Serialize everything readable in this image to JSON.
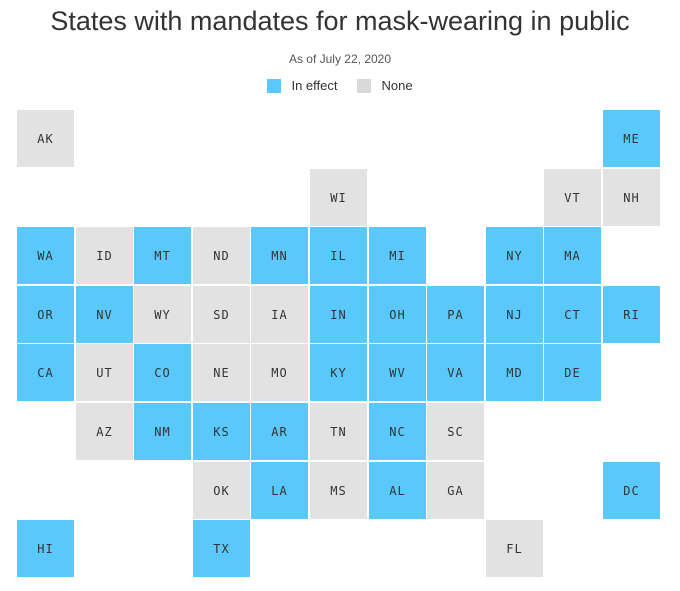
{
  "title": "States with mandates for mask-wearing in public",
  "subtitle": "As of July 22, 2020",
  "legend": [
    {
      "label": "In effect",
      "color": "#5bc8fb"
    },
    {
      "label": "None",
      "color": "#d9d9d9"
    }
  ],
  "colors": {
    "in_effect": "#5bc8fb",
    "none": "#e2e2e2"
  },
  "states": [
    {
      "abbr": "AK",
      "row": 0,
      "col": 0,
      "mandate": false
    },
    {
      "abbr": "ME",
      "row": 0,
      "col": 10,
      "mandate": true
    },
    {
      "abbr": "WI",
      "row": 1,
      "col": 5,
      "mandate": false
    },
    {
      "abbr": "VT",
      "row": 1,
      "col": 9,
      "mandate": false
    },
    {
      "abbr": "NH",
      "row": 1,
      "col": 10,
      "mandate": false
    },
    {
      "abbr": "WA",
      "row": 2,
      "col": 0,
      "mandate": true
    },
    {
      "abbr": "ID",
      "row": 2,
      "col": 1,
      "mandate": false
    },
    {
      "abbr": "MT",
      "row": 2,
      "col": 2,
      "mandate": true
    },
    {
      "abbr": "ND",
      "row": 2,
      "col": 3,
      "mandate": false
    },
    {
      "abbr": "MN",
      "row": 2,
      "col": 4,
      "mandate": true
    },
    {
      "abbr": "IL",
      "row": 2,
      "col": 5,
      "mandate": true
    },
    {
      "abbr": "MI",
      "row": 2,
      "col": 6,
      "mandate": true
    },
    {
      "abbr": "NY",
      "row": 2,
      "col": 8,
      "mandate": true
    },
    {
      "abbr": "MA",
      "row": 2,
      "col": 9,
      "mandate": true
    },
    {
      "abbr": "OR",
      "row": 3,
      "col": 0,
      "mandate": true
    },
    {
      "abbr": "NV",
      "row": 3,
      "col": 1,
      "mandate": true
    },
    {
      "abbr": "WY",
      "row": 3,
      "col": 2,
      "mandate": false
    },
    {
      "abbr": "SD",
      "row": 3,
      "col": 3,
      "mandate": false
    },
    {
      "abbr": "IA",
      "row": 3,
      "col": 4,
      "mandate": false
    },
    {
      "abbr": "IN",
      "row": 3,
      "col": 5,
      "mandate": true
    },
    {
      "abbr": "OH",
      "row": 3,
      "col": 6,
      "mandate": true
    },
    {
      "abbr": "PA",
      "row": 3,
      "col": 7,
      "mandate": true
    },
    {
      "abbr": "NJ",
      "row": 3,
      "col": 8,
      "mandate": true
    },
    {
      "abbr": "CT",
      "row": 3,
      "col": 9,
      "mandate": true
    },
    {
      "abbr": "RI",
      "row": 3,
      "col": 10,
      "mandate": true
    },
    {
      "abbr": "CA",
      "row": 4,
      "col": 0,
      "mandate": true
    },
    {
      "abbr": "UT",
      "row": 4,
      "col": 1,
      "mandate": false
    },
    {
      "abbr": "CO",
      "row": 4,
      "col": 2,
      "mandate": true
    },
    {
      "abbr": "NE",
      "row": 4,
      "col": 3,
      "mandate": false
    },
    {
      "abbr": "MO",
      "row": 4,
      "col": 4,
      "mandate": false
    },
    {
      "abbr": "KY",
      "row": 4,
      "col": 5,
      "mandate": true
    },
    {
      "abbr": "WV",
      "row": 4,
      "col": 6,
      "mandate": true
    },
    {
      "abbr": "VA",
      "row": 4,
      "col": 7,
      "mandate": true
    },
    {
      "abbr": "MD",
      "row": 4,
      "col": 8,
      "mandate": true
    },
    {
      "abbr": "DE",
      "row": 4,
      "col": 9,
      "mandate": true
    },
    {
      "abbr": "AZ",
      "row": 5,
      "col": 1,
      "mandate": false
    },
    {
      "abbr": "NM",
      "row": 5,
      "col": 2,
      "mandate": true
    },
    {
      "abbr": "KS",
      "row": 5,
      "col": 3,
      "mandate": true
    },
    {
      "abbr": "AR",
      "row": 5,
      "col": 4,
      "mandate": true
    },
    {
      "abbr": "TN",
      "row": 5,
      "col": 5,
      "mandate": false
    },
    {
      "abbr": "NC",
      "row": 5,
      "col": 6,
      "mandate": true
    },
    {
      "abbr": "SC",
      "row": 5,
      "col": 7,
      "mandate": false
    },
    {
      "abbr": "OK",
      "row": 6,
      "col": 3,
      "mandate": false
    },
    {
      "abbr": "LA",
      "row": 6,
      "col": 4,
      "mandate": true
    },
    {
      "abbr": "MS",
      "row": 6,
      "col": 5,
      "mandate": false
    },
    {
      "abbr": "AL",
      "row": 6,
      "col": 6,
      "mandate": true
    },
    {
      "abbr": "GA",
      "row": 6,
      "col": 7,
      "mandate": false
    },
    {
      "abbr": "DC",
      "row": 6,
      "col": 10,
      "mandate": true
    },
    {
      "abbr": "HI",
      "row": 7,
      "col": 0,
      "mandate": true
    },
    {
      "abbr": "TX",
      "row": 7,
      "col": 3,
      "mandate": true
    },
    {
      "abbr": "FL",
      "row": 7,
      "col": 8,
      "mandate": false
    }
  ]
}
